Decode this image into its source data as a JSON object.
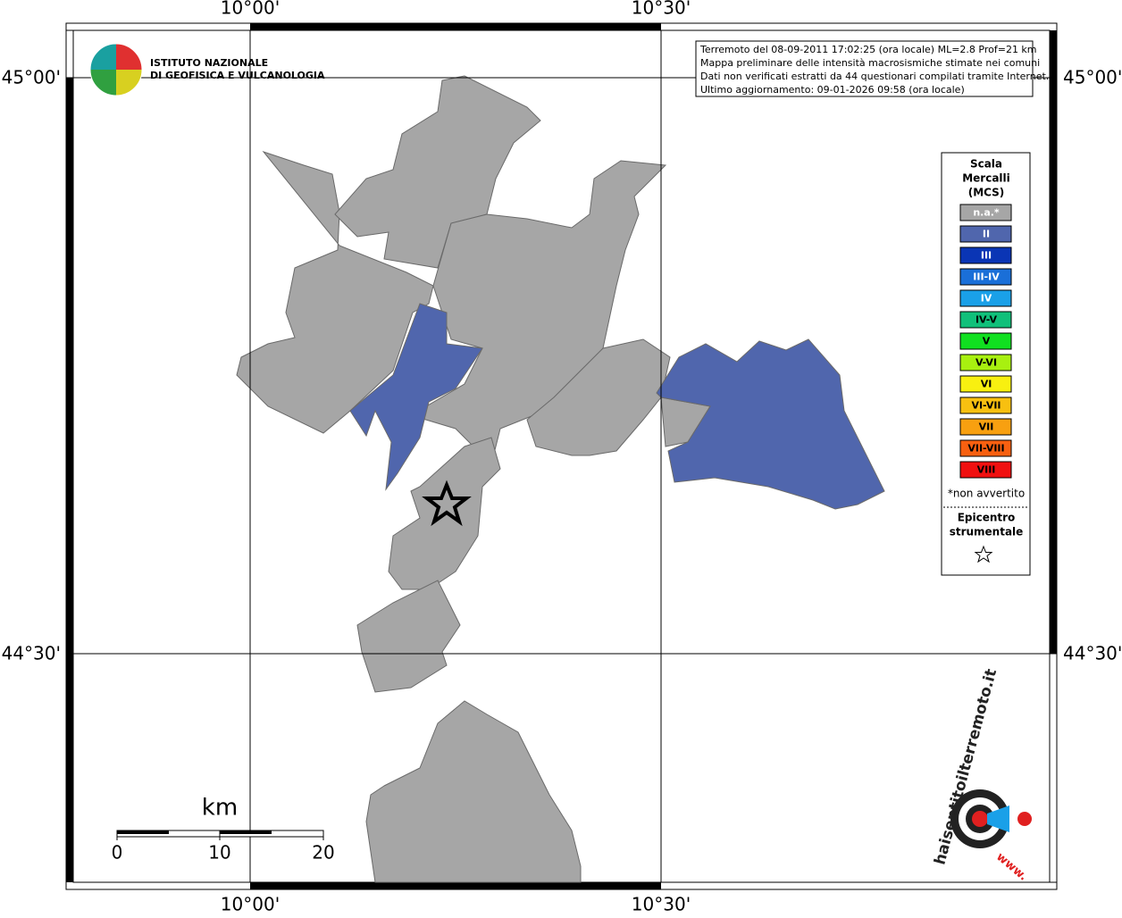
{
  "map": {
    "lon_labels": [
      "10°00'",
      "10°30'"
    ],
    "lat_labels": [
      "45°00'",
      "44°30'"
    ],
    "logo": {
      "line1": "ISTITUTO NAZIONALE",
      "line2": "DI GEOFISICA E VULCANOLOGIA"
    },
    "info": [
      "Terremoto del 08-09-2011 17:02:25 (ora locale) ML=2.8 Prof=21 km",
      "Mappa preliminare delle intensità macrosismiche stimate nei comuni",
      "Dati non verificati estratti da 44 questionari compilati tramite Internet.",
      "Ultimo aggiornamento: 09-01-2026 09:58 (ora locale)"
    ],
    "legend": {
      "title": [
        "Scala",
        "Mercalli",
        "(MCS)"
      ],
      "items": [
        {
          "label": "n.a.*",
          "color": "#a6a6a6",
          "text_color": "#ffffff"
        },
        {
          "label": "II",
          "color": "#5066ad",
          "text_color": "#ffffff"
        },
        {
          "label": "III",
          "color": "#0a35b5",
          "text_color": "#ffffff"
        },
        {
          "label": "III-IV",
          "color": "#1a6fd8",
          "text_color": "#ffffff"
        },
        {
          "label": "IV",
          "color": "#1aa0e8",
          "text_color": "#ffffff"
        },
        {
          "label": "IV-V",
          "color": "#10c07a",
          "text_color": "#000000"
        },
        {
          "label": "V",
          "color": "#10e020",
          "text_color": "#000000"
        },
        {
          "label": "V-VI",
          "color": "#a8f010",
          "text_color": "#000000"
        },
        {
          "label": "VI",
          "color": "#f8f010",
          "text_color": "#000000"
        },
        {
          "label": "VI-VII",
          "color": "#f8c010",
          "text_color": "#000000"
        },
        {
          "label": "VII",
          "color": "#f8a010",
          "text_color": "#000000"
        },
        {
          "label": "VII-VIII",
          "color": "#f86010",
          "text_color": "#000000"
        },
        {
          "label": "VIII",
          "color": "#f01010",
          "text_color": "#000000"
        }
      ],
      "note": "*non avvertito",
      "epicenter": [
        "Epicentro",
        "strumentale"
      ]
    },
    "scale_bar": {
      "unit": "km",
      "labels": [
        "0",
        "10",
        "20"
      ]
    },
    "site_logo": {
      "name": "haisentitoilterremoto.it",
      "prefix": "www."
    }
  }
}
